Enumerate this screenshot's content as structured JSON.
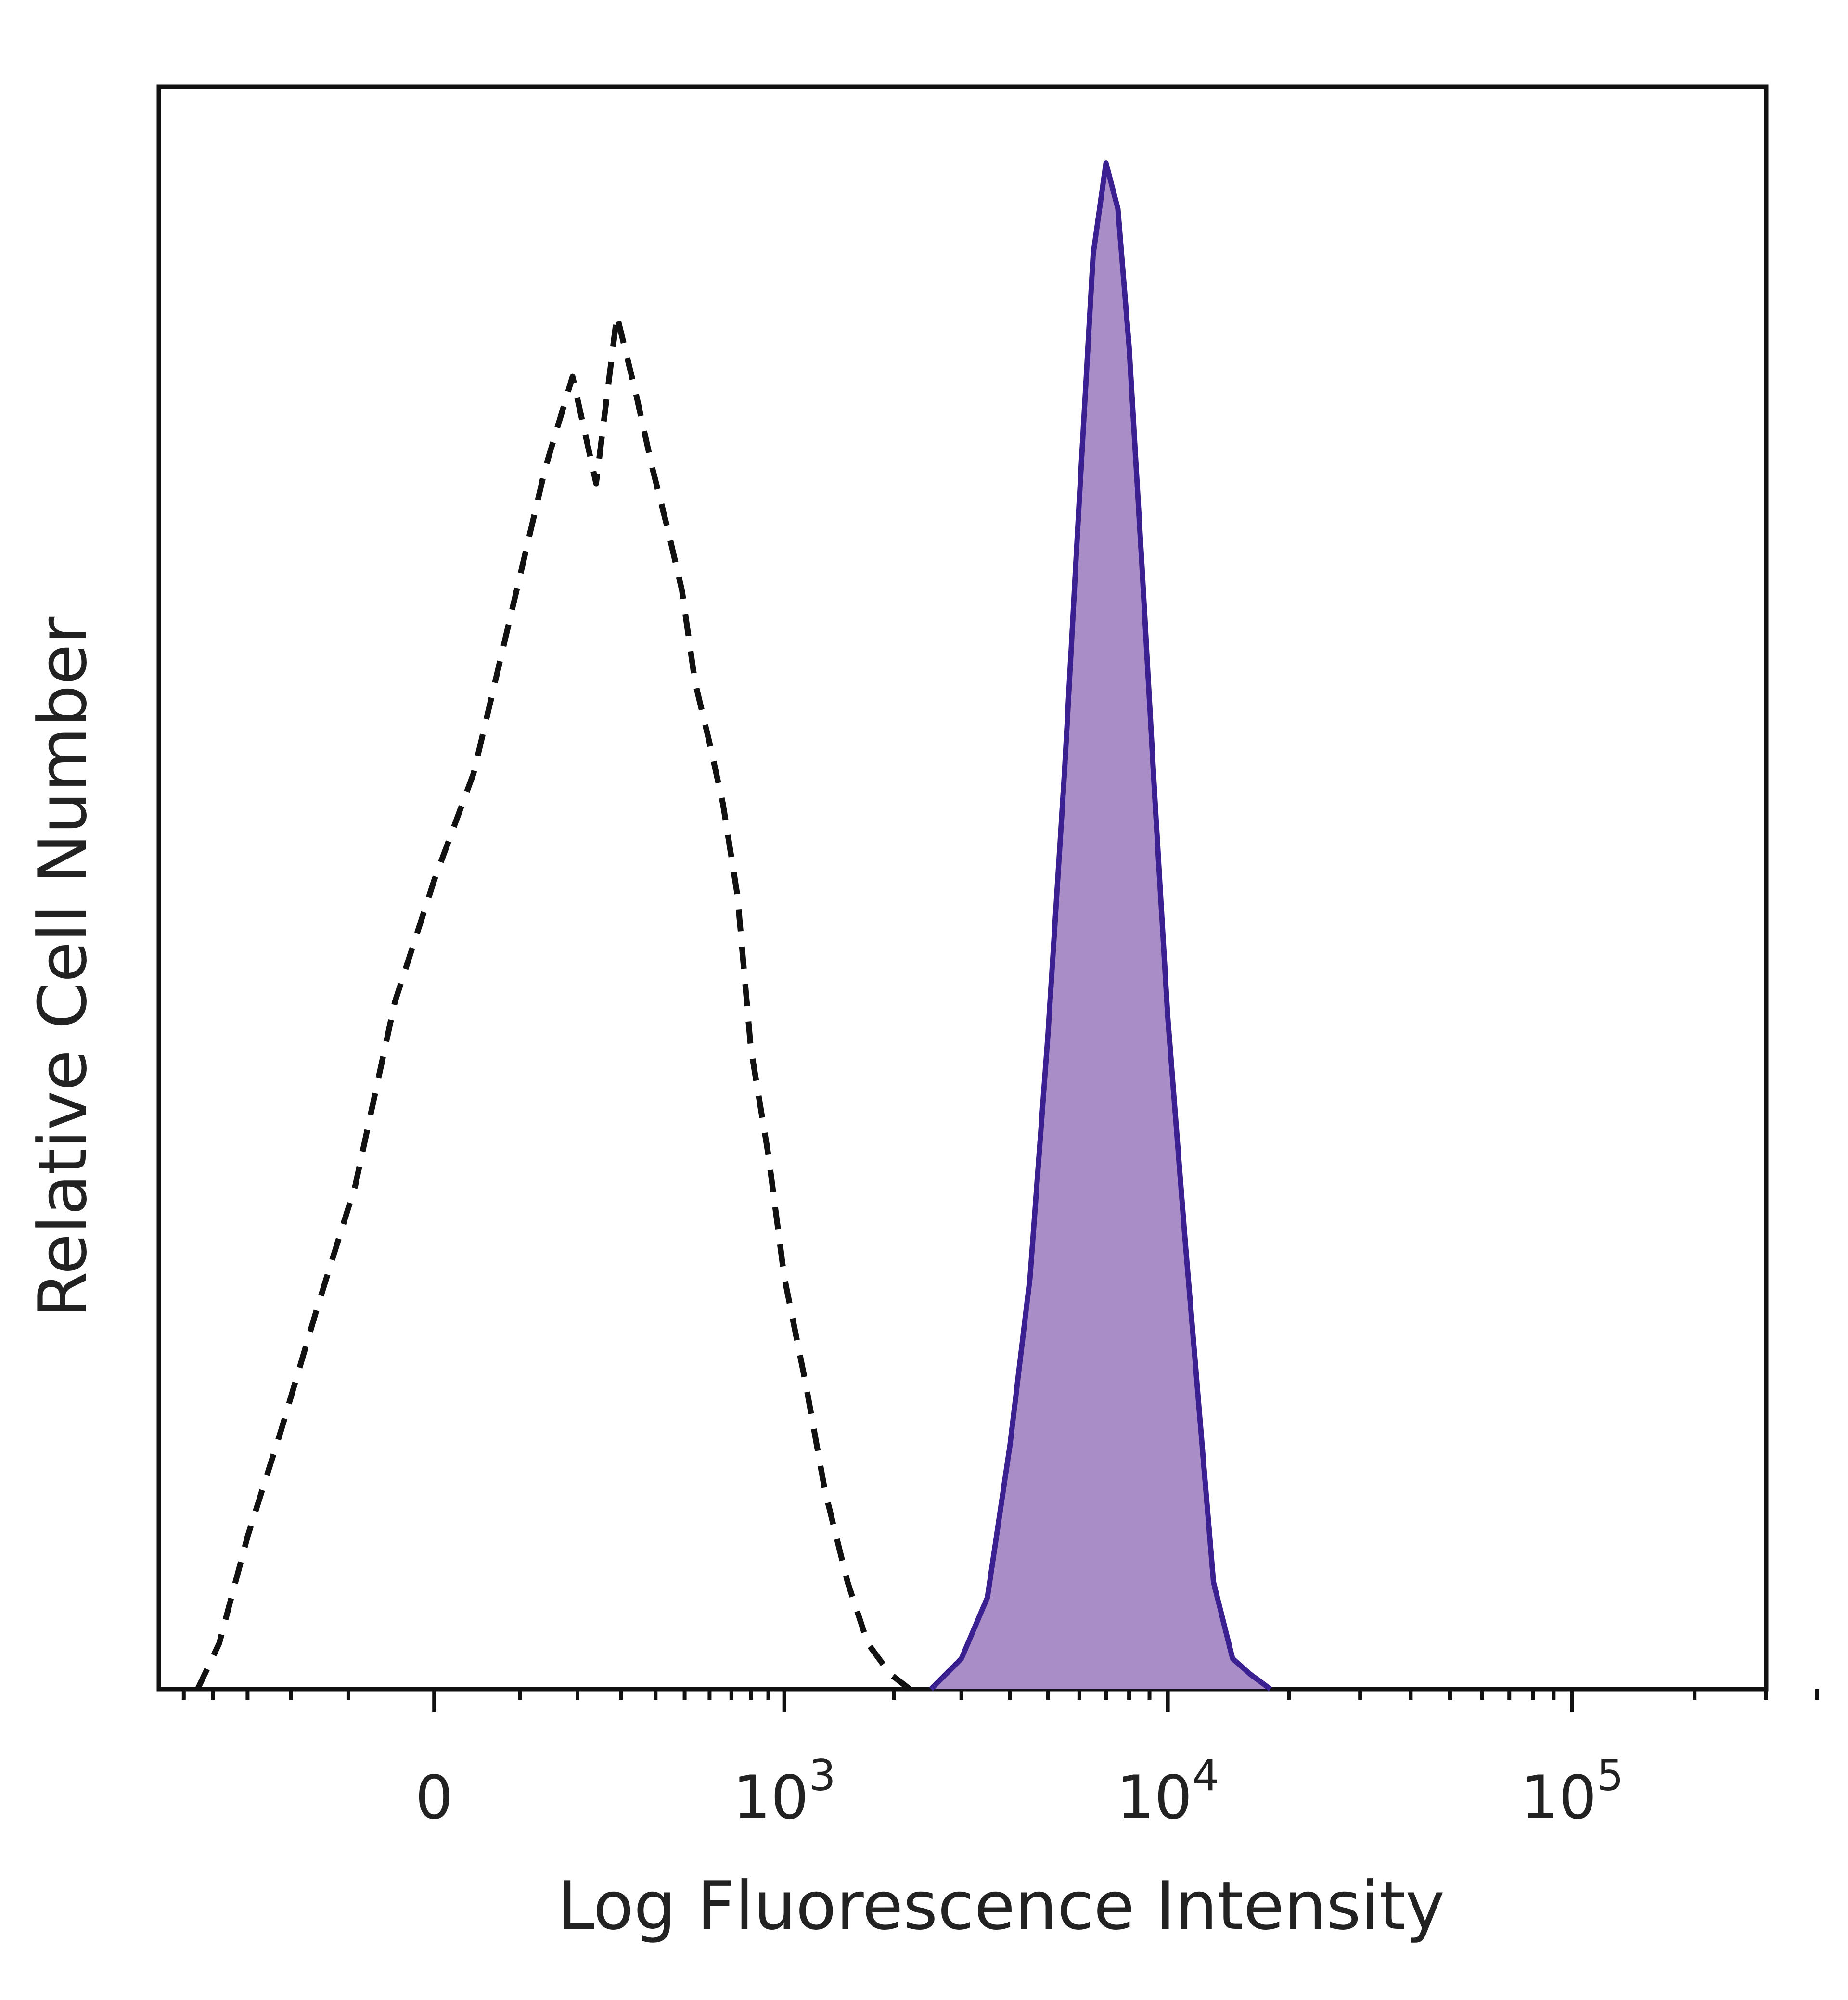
{
  "chart_data": {
    "type": "area",
    "title": "",
    "xlabel": "Log Fluorescence Intensity",
    "ylabel": "Relative Cell Number",
    "x_scale": "biexponential",
    "xlim": [
      -600,
      300000
    ],
    "ylim": [
      0,
      1.05
    ],
    "grid": false,
    "legend": "none",
    "x_tick_labels": [
      {
        "value": 0,
        "base": "0",
        "exp": ""
      },
      {
        "value": 1000,
        "base": "10",
        "exp": "3"
      },
      {
        "value": 10000,
        "base": "10",
        "exp": "4"
      },
      {
        "value": 100000,
        "base": "10",
        "exp": "5"
      }
    ],
    "series": [
      {
        "style": "dashed",
        "color": "#111111",
        "x": [
          -450,
          -380,
          -300,
          -220,
          -150,
          -90,
          -40,
          0,
          40,
          90,
          140,
          190,
          240,
          290,
          340,
          390,
          440,
          490,
          540,
          600,
          660,
          730,
          800,
          900,
          1000,
          1150,
          1300,
          1500,
          1700,
          1950,
          2200
        ],
        "y": [
          0.0,
          0.03,
          0.1,
          0.17,
          0.25,
          0.33,
          0.45,
          0.53,
          0.6,
          0.71,
          0.8,
          0.86,
          0.79,
          0.9,
          0.85,
          0.8,
          0.76,
          0.72,
          0.66,
          0.62,
          0.58,
          0.52,
          0.42,
          0.35,
          0.27,
          0.2,
          0.13,
          0.07,
          0.03,
          0.01,
          0.0
        ]
      },
      {
        "style": "solid-filled",
        "color": "#3a2090",
        "fill": "#a98dc6",
        "x": [
          2500,
          3000,
          3500,
          4000,
          4500,
          5000,
          5500,
          6000,
          6500,
          7000,
          7500,
          8000,
          8600,
          9300,
          10000,
          11000,
          12000,
          13000,
          14500,
          16000,
          18000
        ],
        "y": [
          0.0,
          0.02,
          0.06,
          0.16,
          0.27,
          0.43,
          0.6,
          0.78,
          0.94,
          1.0,
          0.97,
          0.88,
          0.74,
          0.58,
          0.44,
          0.3,
          0.18,
          0.07,
          0.02,
          0.01,
          0.0
        ]
      }
    ]
  }
}
